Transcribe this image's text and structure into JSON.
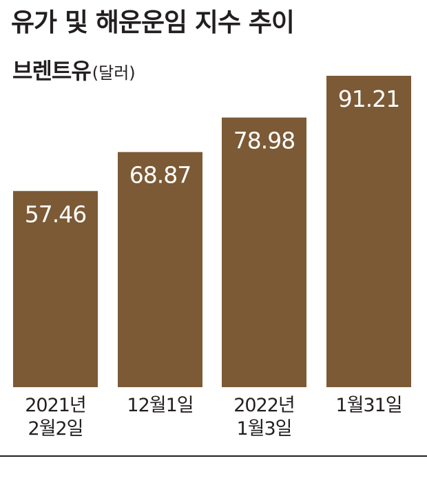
{
  "title": "유가 및 해운운임 지수 추이",
  "subtitle": "브렌트유",
  "unit": "(달러)",
  "colors": {
    "bar": "#7c5a36",
    "bar_label": "#ffffff",
    "text": "#231f20"
  },
  "chart_data": {
    "type": "bar",
    "title": "유가 및 해운운임 지수 추이",
    "ylabel": "브렌트유(달러)",
    "xlabel": "",
    "categories": [
      [
        "2021년",
        "2월2일"
      ],
      [
        "12월1일"
      ],
      [
        "2022년",
        "1월3일"
      ],
      [
        "1월31일"
      ]
    ],
    "values": [
      57.46,
      68.87,
      78.98,
      91.21
    ],
    "value_labels": [
      "57.46",
      "68.87",
      "78.98",
      "91.21"
    ],
    "ylim": [
      0,
      91.21
    ],
    "grid": false,
    "legend": "none"
  }
}
